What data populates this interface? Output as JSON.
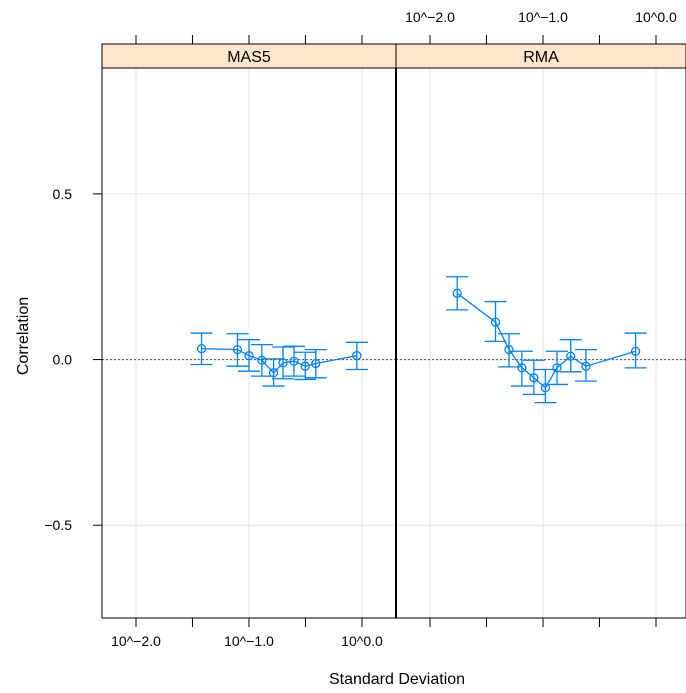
{
  "chart_data": {
    "type": "scatter",
    "xlabel": "Standard Deviation",
    "ylabel": "Correlation",
    "x_scale": "log10",
    "xlim": [
      0.005,
      2.0
    ],
    "ylim": [
      -0.78,
      0.88
    ],
    "x_ticks": [
      0.01,
      0.1,
      1.0
    ],
    "x_tick_labels": [
      "10^−2.0",
      "10^−1.0",
      "10^0.0"
    ],
    "x_minor_ticks": [
      0.0316,
      0.316
    ],
    "y_ticks": [
      -0.5,
      0.0,
      0.5
    ],
    "y_tick_labels": [
      "−0.5",
      "0.0",
      "0.5"
    ],
    "reference_line_y": 0.0,
    "grid": true,
    "colors": {
      "series": "#0080ff",
      "strip": "#ffe5cc",
      "grid": "#e6e6e6",
      "reference": "#555555"
    },
    "panels": [
      {
        "title": "MAS5",
        "points": [
          {
            "x": 0.038,
            "y": 0.033,
            "lower": -0.015,
            "upper": 0.08
          },
          {
            "x": 0.079,
            "y": 0.03,
            "lower": -0.02,
            "upper": 0.078
          },
          {
            "x": 0.1,
            "y": 0.012,
            "lower": -0.035,
            "upper": 0.06
          },
          {
            "x": 0.13,
            "y": -0.002,
            "lower": -0.05,
            "upper": 0.045
          },
          {
            "x": 0.165,
            "y": -0.04,
            "lower": -0.08,
            "upper": 0.002
          },
          {
            "x": 0.2,
            "y": -0.01,
            "lower": -0.058,
            "upper": 0.038
          },
          {
            "x": 0.25,
            "y": -0.005,
            "lower": -0.05,
            "upper": 0.04
          },
          {
            "x": 0.315,
            "y": -0.02,
            "lower": -0.06,
            "upper": 0.022
          },
          {
            "x": 0.39,
            "y": -0.012,
            "lower": -0.055,
            "upper": 0.03
          },
          {
            "x": 0.9,
            "y": 0.012,
            "lower": -0.03,
            "upper": 0.052
          }
        ]
      },
      {
        "title": "RMA",
        "points": [
          {
            "x": 0.0174,
            "y": 0.2,
            "lower": 0.15,
            "upper": 0.25
          },
          {
            "x": 0.038,
            "y": 0.113,
            "lower": 0.055,
            "upper": 0.175
          },
          {
            "x": 0.05,
            "y": 0.03,
            "lower": -0.022,
            "upper": 0.078
          },
          {
            "x": 0.065,
            "y": -0.025,
            "lower": -0.08,
            "upper": 0.025
          },
          {
            "x": 0.083,
            "y": -0.055,
            "lower": -0.105,
            "upper": -0.002
          },
          {
            "x": 0.105,
            "y": -0.085,
            "lower": -0.13,
            "upper": -0.03
          },
          {
            "x": 0.133,
            "y": -0.025,
            "lower": -0.075,
            "upper": 0.025
          },
          {
            "x": 0.176,
            "y": 0.01,
            "lower": -0.037,
            "upper": 0.06
          },
          {
            "x": 0.24,
            "y": -0.02,
            "lower": -0.065,
            "upper": 0.03
          },
          {
            "x": 0.66,
            "y": 0.025,
            "lower": -0.025,
            "upper": 0.08
          }
        ]
      }
    ]
  }
}
